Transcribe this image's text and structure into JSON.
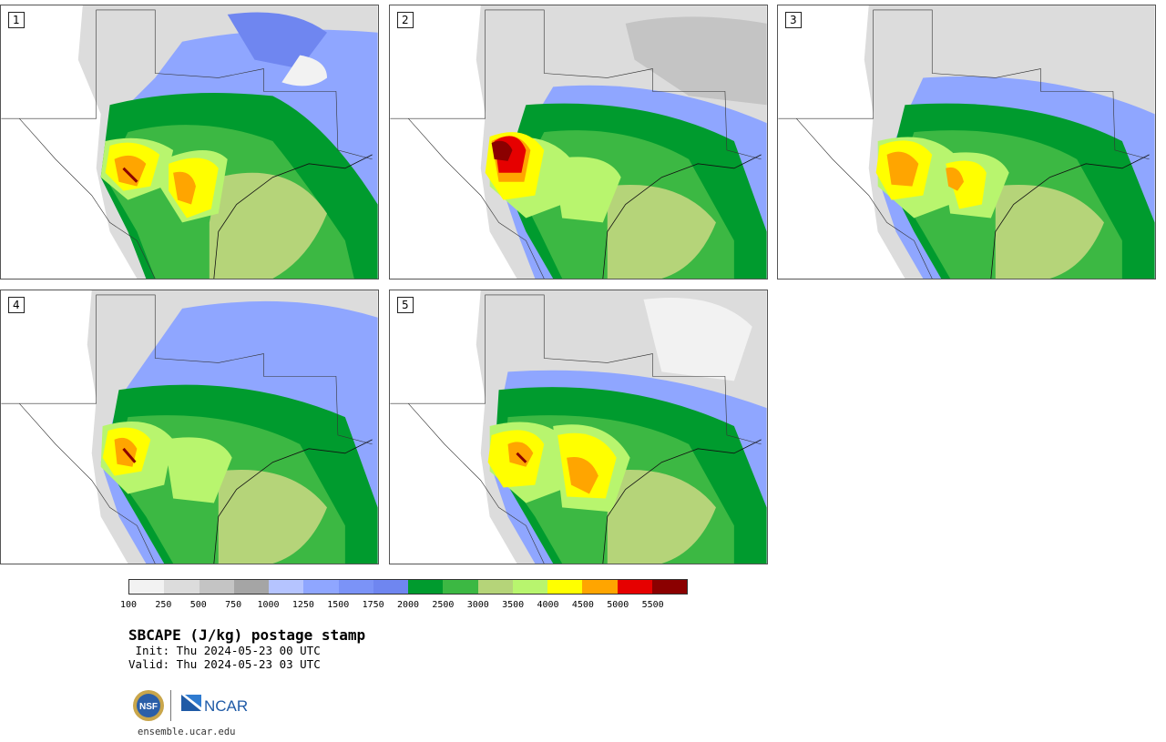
{
  "panels": [
    {
      "number": "1"
    },
    {
      "number": "2"
    },
    {
      "number": "3"
    },
    {
      "number": "4"
    },
    {
      "number": "5"
    }
  ],
  "colorbar": {
    "colors": [
      "#f2f2f2",
      "#dcdcdc",
      "#c4c4c4",
      "#a5a5a5",
      "#b5c4ff",
      "#8fa6ff",
      "#7b93f7",
      "#6f86f0",
      "#009b2e",
      "#3cb843",
      "#b5d479",
      "#b8f56e",
      "#ffff00",
      "#ffa500",
      "#e60000",
      "#8b0000"
    ],
    "labels": [
      "100",
      "250",
      "500",
      "750",
      "1000",
      "1250",
      "1500",
      "1750",
      "2000",
      "2500",
      "3000",
      "3500",
      "4000",
      "4500",
      "5000",
      "5500"
    ]
  },
  "title": "SBCAPE (J/kg) postage stamp",
  "init_line": " Init: Thu 2024-05-23 00 UTC",
  "valid_line": "Valid: Thu 2024-05-23 03 UTC",
  "logos": {
    "nsf_text": "NSF",
    "ncar_text": "NCAR"
  },
  "url": "ensemble.ucar.edu"
}
